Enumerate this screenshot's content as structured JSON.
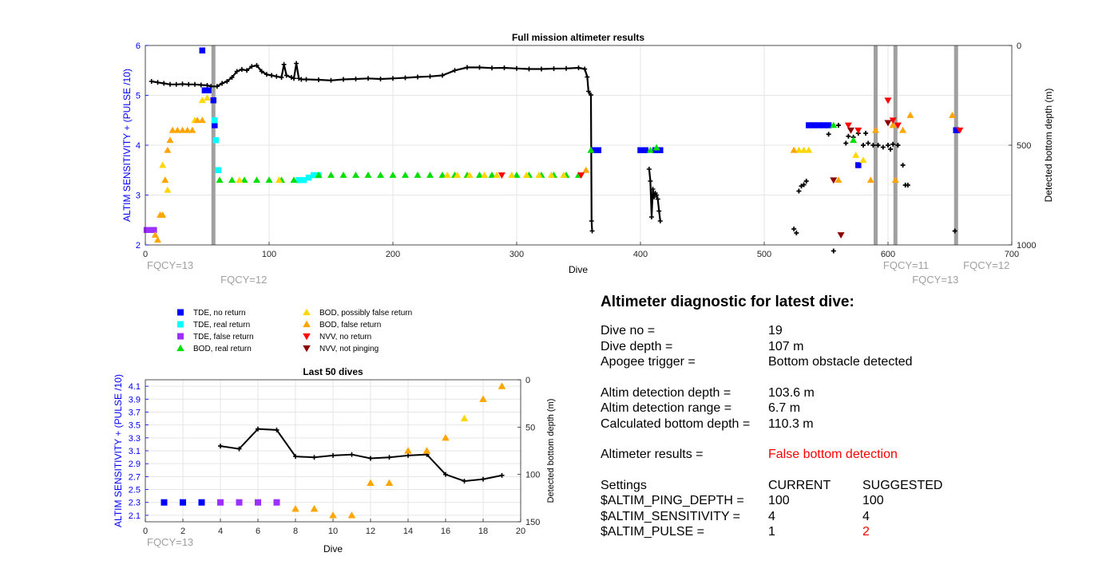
{
  "colors": {
    "tde_no_return": "#0000ff",
    "tde_real_return": "#00ffff",
    "tde_false_return": "#9b30ff",
    "bod_real_return": "#00e000",
    "bod_possibly_false": "#ffd700",
    "bod_false": "#ffa500",
    "nvv_no_return": "#ff0000",
    "nvv_not_pinging": "#8b0000",
    "depth": "#000000",
    "fqcy": "#a0a0a0",
    "left_axis": "#0000ff"
  },
  "legend": {
    "tde_no_return": "TDE, no return",
    "tde_real_return": "TDE, real return",
    "tde_false_return": "TDE, false return",
    "bod_real_return": "BOD, real return",
    "bod_possibly_false": "BOD, possibly false return",
    "bod_false": "BOD, false return",
    "nvv_no_return": "NVV, no return",
    "nvv_not_pinging": "NVV, not pinging"
  },
  "chart_data": [
    {
      "type": "scatter",
      "title": "Full mission altimeter results",
      "xlabel": "Dive",
      "ylabel": "ALTIM SENSITIVITY + (PULSE /10)",
      "y2label": "Detected bottom depth (m)",
      "xlim": [
        0,
        700
      ],
      "ylim": [
        2,
        6
      ],
      "y2lim": [
        1000,
        0
      ],
      "xticks": [
        0,
        100,
        200,
        300,
        400,
        500,
        600,
        700
      ],
      "yticks": [
        2,
        3,
        4,
        5,
        6
      ],
      "y2ticks": [
        0,
        500,
        1000
      ],
      "fqcy_lines": [
        {
          "dive": 55,
          "label": "FQCY=12"
        },
        {
          "dive": 590,
          "label": "FQCY=11"
        },
        {
          "dive": 606,
          "label": "FQCY=13"
        },
        {
          "dive": 655,
          "label": "FQCY=12"
        }
      ],
      "fqcy_start_label": "FQCY=13",
      "depth_series": [
        [
          5,
          180
        ],
        [
          10,
          185
        ],
        [
          15,
          190
        ],
        [
          20,
          195
        ],
        [
          25,
          195
        ],
        [
          30,
          193
        ],
        [
          35,
          195
        ],
        [
          40,
          195
        ],
        [
          45,
          198
        ],
        [
          50,
          200
        ],
        [
          53,
          205
        ],
        [
          58,
          205
        ],
        [
          62,
          190
        ],
        [
          66,
          180
        ],
        [
          70,
          160
        ],
        [
          74,
          130
        ],
        [
          78,
          120
        ],
        [
          82,
          125
        ],
        [
          86,
          105
        ],
        [
          90,
          100
        ],
        [
          94,
          130
        ],
        [
          98,
          145
        ],
        [
          102,
          150
        ],
        [
          106,
          155
        ],
        [
          110,
          160
        ],
        [
          112,
          95
        ],
        [
          114,
          150
        ],
        [
          118,
          160
        ],
        [
          120,
          165
        ],
        [
          122,
          90
        ],
        [
          124,
          165
        ],
        [
          126,
          170
        ],
        [
          130,
          170
        ],
        [
          140,
          172
        ],
        [
          150,
          175
        ],
        [
          160,
          170
        ],
        [
          170,
          168
        ],
        [
          180,
          165
        ],
        [
          190,
          168
        ],
        [
          200,
          165
        ],
        [
          210,
          162
        ],
        [
          220,
          158
        ],
        [
          230,
          155
        ],
        [
          240,
          150
        ],
        [
          250,
          125
        ],
        [
          260,
          110
        ],
        [
          270,
          110
        ],
        [
          280,
          113
        ],
        [
          290,
          112
        ],
        [
          300,
          115
        ],
        [
          310,
          118
        ],
        [
          320,
          118
        ],
        [
          330,
          116
        ],
        [
          340,
          115
        ],
        [
          350,
          112
        ],
        [
          355,
          118
        ],
        [
          357,
          158
        ],
        [
          358,
          230
        ],
        [
          360,
          248
        ],
        [
          360.5,
          880
        ],
        [
          361,
          930
        ]
      ],
      "depth_series_2": [
        [
          407,
          620
        ],
        [
          408,
          680
        ],
        [
          409,
          860
        ],
        [
          410,
          720
        ],
        [
          411,
          760
        ],
        [
          412,
          740
        ],
        [
          413,
          750
        ],
        [
          414,
          770
        ],
        [
          415,
          830
        ],
        [
          416,
          880
        ]
      ],
      "depth_scatter": [
        [
          524,
          920
        ],
        [
          526,
          940
        ],
        [
          528,
          730
        ],
        [
          530,
          705
        ],
        [
          532,
          698
        ],
        [
          534,
          680
        ],
        [
          540,
          400
        ],
        [
          552,
          445
        ],
        [
          556,
          1030
        ],
        [
          560,
          400
        ],
        [
          566,
          490
        ],
        [
          568,
          455
        ],
        [
          572,
          460
        ],
        [
          576,
          440
        ],
        [
          580,
          500
        ],
        [
          582,
          440
        ],
        [
          584,
          490
        ],
        [
          588,
          500
        ],
        [
          592,
          500
        ],
        [
          596,
          510
        ],
        [
          600,
          500
        ],
        [
          602,
          520
        ],
        [
          604,
          495
        ],
        [
          608,
          500
        ],
        [
          612,
          600
        ],
        [
          614,
          700
        ],
        [
          616,
          700
        ],
        [
          654,
          930
        ]
      ],
      "markers": [
        {
          "cat": "tde_false_return",
          "pts": [
            [
              1,
              2.3
            ],
            [
              3,
              2.3
            ],
            [
              5,
              2.3
            ],
            [
              7,
              2.3
            ]
          ]
        },
        {
          "cat": "tde_no_return",
          "pts": [
            [
              46,
              5.9
            ],
            [
              48,
              5.1
            ],
            [
              51,
              5.1
            ],
            [
              55,
              4.9
            ],
            [
              56,
              4.4
            ],
            [
              363,
              3.9
            ],
            [
              366,
              3.9
            ],
            [
              400,
              3.9
            ],
            [
              404,
              3.9
            ],
            [
              412,
              3.9
            ],
            [
              416,
              3.9
            ],
            [
              536,
              4.4
            ],
            [
              540,
              4.4
            ],
            [
              544,
              4.4
            ],
            [
              548,
              4.4
            ],
            [
              552,
              4.4
            ],
            [
              576,
              3.6
            ],
            [
              655,
              4.3
            ]
          ]
        },
        {
          "cat": "tde_real_return",
          "pts": [
            [
              56,
              4.5
            ],
            [
              57,
              4.1
            ],
            [
              59,
              3.5
            ],
            [
              124,
              3.3
            ],
            [
              128,
              3.3
            ],
            [
              132,
              3.35
            ],
            [
              136,
              3.4
            ],
            [
              140,
              3.4
            ]
          ]
        },
        {
          "cat": "bod_real_return",
          "pts": [
            [
              60,
              3.3
            ],
            [
              70,
              3.3
            ],
            [
              80,
              3.3
            ],
            [
              90,
              3.3
            ],
            [
              100,
              3.3
            ],
            [
              110,
              3.3
            ],
            [
              120,
              3.3
            ],
            [
              140,
              3.4
            ],
            [
              150,
              3.4
            ],
            [
              160,
              3.4
            ],
            [
              170,
              3.4
            ],
            [
              180,
              3.4
            ],
            [
              190,
              3.4
            ],
            [
              200,
              3.4
            ],
            [
              210,
              3.4
            ],
            [
              220,
              3.4
            ],
            [
              230,
              3.4
            ],
            [
              240,
              3.4
            ],
            [
              250,
              3.4
            ],
            [
              260,
              3.4
            ],
            [
              270,
              3.4
            ],
            [
              280,
              3.4
            ],
            [
              300,
              3.4
            ],
            [
              310,
              3.4
            ],
            [
              320,
              3.4
            ],
            [
              330,
              3.4
            ],
            [
              340,
              3.4
            ],
            [
              350,
              3.4
            ],
            [
              360,
              3.9
            ],
            [
              408,
              3.9
            ],
            [
              413,
              3.95
            ],
            [
              556,
              4.4
            ],
            [
              572,
              4.1
            ]
          ]
        },
        {
          "cat": "bod_possibly_false",
          "pts": [
            [
              14,
              3.6
            ],
            [
              16,
              3.3
            ],
            [
              18,
              3.1
            ],
            [
              40,
              4.5
            ],
            [
              46,
              4.9
            ],
            [
              50,
              4.95
            ],
            [
              76,
              3.3
            ],
            [
              108,
              3.3
            ],
            [
              244,
              3.4
            ],
            [
              252,
              3.4
            ],
            [
              262,
              3.4
            ],
            [
              274,
              3.4
            ],
            [
              284,
              3.4
            ],
            [
              296,
              3.4
            ],
            [
              308,
              3.4
            ],
            [
              318,
              3.4
            ],
            [
              328,
              3.4
            ],
            [
              338,
              3.4
            ],
            [
              528,
              3.9
            ],
            [
              532,
              3.9
            ],
            [
              536,
              3.9
            ],
            [
              574,
              3.8
            ],
            [
              580,
              3.7
            ]
          ]
        },
        {
          "cat": "bod_false",
          "pts": [
            [
              8,
              2.2
            ],
            [
              10,
              2.1
            ],
            [
              12,
              2.6
            ],
            [
              14,
              2.6
            ],
            [
              16,
              3.3
            ],
            [
              18,
              3.9
            ],
            [
              20,
              4.1
            ],
            [
              22,
              4.3
            ],
            [
              26,
              4.3
            ],
            [
              30,
              4.3
            ],
            [
              34,
              4.3
            ],
            [
              38,
              4.3
            ],
            [
              42,
              4.5
            ],
            [
              46,
              4.5
            ],
            [
              356,
              3.5
            ],
            [
              524,
              3.9
            ],
            [
              560,
              3.3
            ],
            [
              586,
              3.3
            ],
            [
              590,
              4.3
            ],
            [
              604,
              4.4
            ],
            [
              606,
              3.3
            ],
            [
              612,
              4.3
            ],
            [
              618,
              4.6
            ],
            [
              652,
              4.6
            ]
          ]
        },
        {
          "cat": "nvv_no_return",
          "pts": [
            [
              288,
              3.4
            ],
            [
              352,
              3.4
            ],
            [
              568,
              4.4
            ],
            [
              576,
              4.3
            ],
            [
              600,
              4.9
            ],
            [
              604,
              4.5
            ],
            [
              608,
              4.4
            ],
            [
              658,
              4.3
            ]
          ]
        },
        {
          "cat": "nvv_not_pinging",
          "pts": [
            [
              556,
              3.3
            ],
            [
              562,
              2.2
            ],
            [
              570,
              4.3
            ],
            [
              600,
              4.45
            ]
          ]
        }
      ]
    },
    {
      "type": "scatter",
      "title": "Last 50 dives",
      "xlabel": "Dive",
      "ylabel": "ALTIM SENSITIVITY + (PULSE /10)",
      "y2label": "Detected bottom depth (m)",
      "xlim": [
        0,
        20
      ],
      "ylim": [
        2,
        4.2
      ],
      "y2lim": [
        150,
        0
      ],
      "xticks": [
        0,
        2,
        4,
        6,
        8,
        10,
        12,
        14,
        16,
        18,
        20
      ],
      "yticks": [
        2.1,
        2.3,
        2.5,
        2.7,
        2.9,
        3.1,
        3.3,
        3.5,
        3.7,
        3.9,
        4.1
      ],
      "y2ticks": [
        0,
        50,
        100,
        150
      ],
      "fqcy_start_label": "FQCY=13",
      "depth_series": [
        [
          4,
          70
        ],
        [
          5,
          73
        ],
        [
          6,
          52
        ],
        [
          7,
          53
        ],
        [
          8,
          81
        ],
        [
          9,
          82
        ],
        [
          10,
          80
        ],
        [
          11,
          79
        ],
        [
          12,
          83
        ],
        [
          13,
          82
        ],
        [
          14,
          80
        ],
        [
          15,
          79
        ],
        [
          16,
          100
        ],
        [
          17,
          107
        ],
        [
          18,
          105
        ],
        [
          19,
          101
        ]
      ],
      "markers": [
        {
          "cat": "tde_no_return",
          "pts": [
            [
              1,
              2.3
            ],
            [
              2,
              2.3
            ],
            [
              3,
              2.3
            ]
          ]
        },
        {
          "cat": "tde_false_return",
          "pts": [
            [
              4,
              2.3
            ],
            [
              5,
              2.3
            ],
            [
              6,
              2.3
            ],
            [
              7,
              2.3
            ]
          ]
        },
        {
          "cat": "bod_false",
          "pts": [
            [
              8,
              2.2
            ],
            [
              9,
              2.2
            ],
            [
              10,
              2.1
            ],
            [
              11,
              2.1
            ],
            [
              12,
              2.6
            ],
            [
              13,
              2.6
            ],
            [
              14,
              3.1
            ],
            [
              15,
              3.1
            ],
            [
              16,
              3.3
            ],
            [
              18,
              3.9
            ],
            [
              19,
              4.1
            ]
          ]
        },
        {
          "cat": "bod_possibly_false",
          "pts": [
            [
              17,
              3.6
            ]
          ]
        }
      ]
    }
  ],
  "diagnostic": {
    "title": "Altimeter diagnostic for latest dive:",
    "dive_no_label": "Dive no =",
    "dive_no_value": "19",
    "dive_depth_label": "Dive depth =",
    "dive_depth_value": "107 m",
    "apogee_label": "Apogee trigger =",
    "apogee_value": "Bottom obstacle detected",
    "detect_depth_label": "Altim detection depth =",
    "detect_depth_value": "103.6 m",
    "detect_range_label": "Altim detection range =",
    "detect_range_value": "6.7 m",
    "calc_bottom_label": "Calculated bottom depth =",
    "calc_bottom_value": "110.3 m",
    "results_label": "Altimeter results =",
    "results_value": "False bottom detection",
    "settings_label": "Settings",
    "current_header": "CURRENT",
    "suggested_header": "SUGGESTED",
    "settings": [
      {
        "name": "$ALTIM_PING_DEPTH =",
        "current": "100",
        "suggested": "100",
        "changed": false
      },
      {
        "name": "$ALTIM_SENSITIVITY =",
        "current": "4",
        "suggested": "4",
        "changed": false
      },
      {
        "name": "$ALTIM_PULSE =",
        "current": "1",
        "suggested": "2",
        "changed": true
      }
    ]
  }
}
